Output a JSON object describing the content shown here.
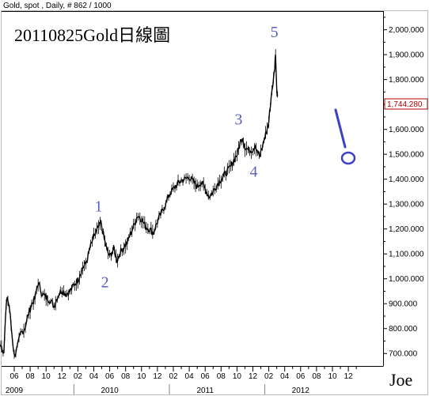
{
  "header": {
    "info": "Gold, spot , Daily, # 862 / 1000"
  },
  "signature": "Joe",
  "colors": {
    "price_line": "#000000",
    "annotation": "#5a5fc0",
    "current_price_box": "#b00000"
  },
  "chart_data": {
    "type": "line",
    "title": "20110825Gold日線圖",
    "y_ticks": [
      "700.000",
      "800.000",
      "900.000",
      "1,000.000",
      "1,100.000",
      "1,200.000",
      "1,300.000",
      "1,400.000",
      "1,500.000",
      "1,600.000",
      "1,700.000",
      "1,800.000",
      "1,900.000",
      "2,000.000"
    ],
    "y_tick_values": [
      700,
      800,
      900,
      1000,
      1100,
      1200,
      1300,
      1400,
      1500,
      1600,
      1700,
      1800,
      1900,
      2000
    ],
    "ylim": [
      650,
      2075
    ],
    "x_month_labels": [
      "06",
      "08",
      "10",
      "12",
      "02",
      "04",
      "06",
      "08",
      "10",
      "12",
      "02",
      "04",
      "06",
      "08",
      "10",
      "12",
      "02",
      "04",
      "06",
      "08",
      "10",
      "12"
    ],
    "x_year_labels": [
      {
        "label": "2009",
        "month_index": 0
      },
      {
        "label": "2010",
        "month_index": 12
      },
      {
        "label": "2011",
        "month_index": 24
      },
      {
        "label": "2012",
        "month_index": 36
      }
    ],
    "current_price": "1,744.280",
    "current_price_value": 1744.28,
    "series": [
      {
        "points": [
          [
            -7.0,
            870
          ],
          [
            -6.5,
            890
          ],
          [
            -6.0,
            915
          ],
          [
            -5.5,
            885
          ],
          [
            -5.0,
            905
          ],
          [
            -4.5,
            940
          ],
          [
            -4.0,
            985
          ],
          [
            -3.5,
            940
          ],
          [
            -3.0,
            880
          ],
          [
            -2.7,
            800
          ],
          [
            -2.3,
            775
          ],
          [
            -2.0,
            760
          ],
          [
            -1.6,
            730
          ],
          [
            -1.3,
            705
          ],
          [
            -1.1,
            840
          ],
          [
            -0.9,
            930
          ],
          [
            -0.6,
            880
          ],
          [
            -0.3,
            780
          ],
          [
            0.0,
            690
          ],
          [
            0.4,
            725
          ],
          [
            0.8,
            780
          ],
          [
            1.3,
            800
          ],
          [
            1.8,
            860
          ],
          [
            2.2,
            900
          ],
          [
            2.6,
            920
          ],
          [
            3.0,
            985
          ],
          [
            3.5,
            940
          ],
          [
            4.0,
            925
          ],
          [
            4.5,
            915
          ],
          [
            5.0,
            890
          ],
          [
            5.5,
            935
          ],
          [
            6.0,
            955
          ],
          [
            6.5,
            940
          ],
          [
            7.0,
            950
          ],
          [
            7.5,
            975
          ],
          [
            8.0,
            995
          ],
          [
            8.5,
            1040
          ],
          [
            9.0,
            1060
          ],
          [
            9.5,
            1120
          ],
          [
            10.0,
            1170
          ],
          [
            10.5,
            1200
          ],
          [
            10.9,
            1225
          ],
          [
            11.3,
            1160
          ],
          [
            11.7,
            1110
          ],
          [
            12.0,
            1090
          ],
          [
            12.5,
            1120
          ],
          [
            12.9,
            1075
          ],
          [
            13.4,
            1110
          ],
          [
            13.8,
            1130
          ],
          [
            14.2,
            1145
          ],
          [
            14.6,
            1180
          ],
          [
            15.0,
            1210
          ],
          [
            15.5,
            1255
          ],
          [
            16.0,
            1240
          ],
          [
            16.5,
            1210
          ],
          [
            17.0,
            1200
          ],
          [
            17.5,
            1185
          ],
          [
            18.0,
            1230
          ],
          [
            18.5,
            1265
          ],
          [
            19.0,
            1300
          ],
          [
            19.5,
            1340
          ],
          [
            20.0,
            1360
          ],
          [
            20.5,
            1380
          ],
          [
            21.0,
            1395
          ],
          [
            21.5,
            1400
          ],
          [
            22.0,
            1410
          ],
          [
            22.5,
            1390
          ],
          [
            23.0,
            1370
          ],
          [
            23.5,
            1390
          ],
          [
            24.0,
            1360
          ],
          [
            24.5,
            1330
          ],
          [
            25.0,
            1350
          ],
          [
            25.5,
            1380
          ],
          [
            26.0,
            1400
          ],
          [
            26.5,
            1420
          ],
          [
            27.0,
            1440
          ],
          [
            27.5,
            1470
          ],
          [
            28.0,
            1500
          ],
          [
            28.4,
            1545
          ],
          [
            28.7,
            1570
          ],
          [
            29.0,
            1530
          ],
          [
            29.5,
            1515
          ],
          [
            30.0,
            1520
          ],
          [
            30.3,
            1540
          ],
          [
            30.6,
            1510
          ],
          [
            30.9,
            1490
          ],
          [
            31.2,
            1530
          ],
          [
            31.5,
            1570
          ],
          [
            31.8,
            1600
          ],
          [
            32.0,
            1630
          ],
          [
            32.2,
            1700
          ],
          [
            32.4,
            1760
          ],
          [
            32.6,
            1800
          ],
          [
            32.75,
            1850
          ],
          [
            32.85,
            1910
          ],
          [
            33.0,
            1750
          ],
          [
            33.1,
            1740
          ]
        ]
      }
    ],
    "wave_labels": [
      {
        "label": "1",
        "month_index": 10.6,
        "value": 1270
      },
      {
        "label": "2",
        "month_index": 11.4,
        "value": 965
      },
      {
        "label": "3",
        "month_index": 28.2,
        "value": 1620
      },
      {
        "label": "4",
        "month_index": 30.1,
        "value": 1410
      },
      {
        "label": "5",
        "month_index": 32.7,
        "value": 1970
      }
    ]
  }
}
